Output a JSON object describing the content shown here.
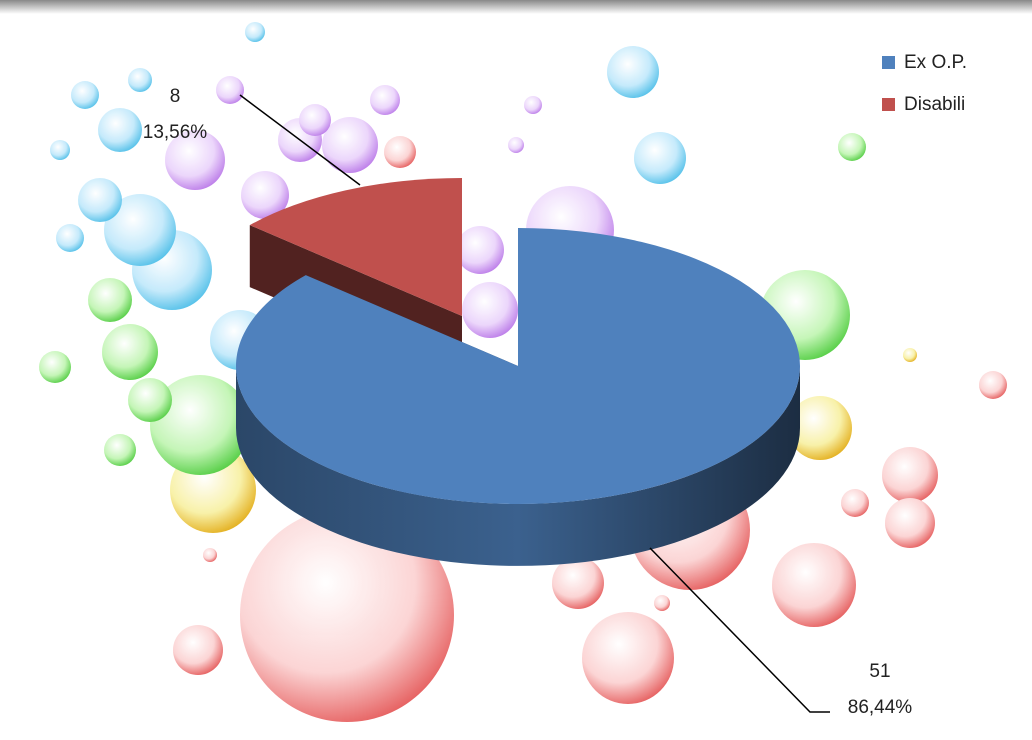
{
  "chart_data": {
    "type": "pie",
    "categories": [
      "Ex O.P.",
      "Disabili"
    ],
    "values": [
      51,
      8
    ],
    "percent_labels": [
      "86,44%",
      "13,56%"
    ],
    "colors": [
      "#4f81bd",
      "#c0504d"
    ],
    "exploded": [
      false,
      true
    ],
    "legend": "top-right"
  }
}
